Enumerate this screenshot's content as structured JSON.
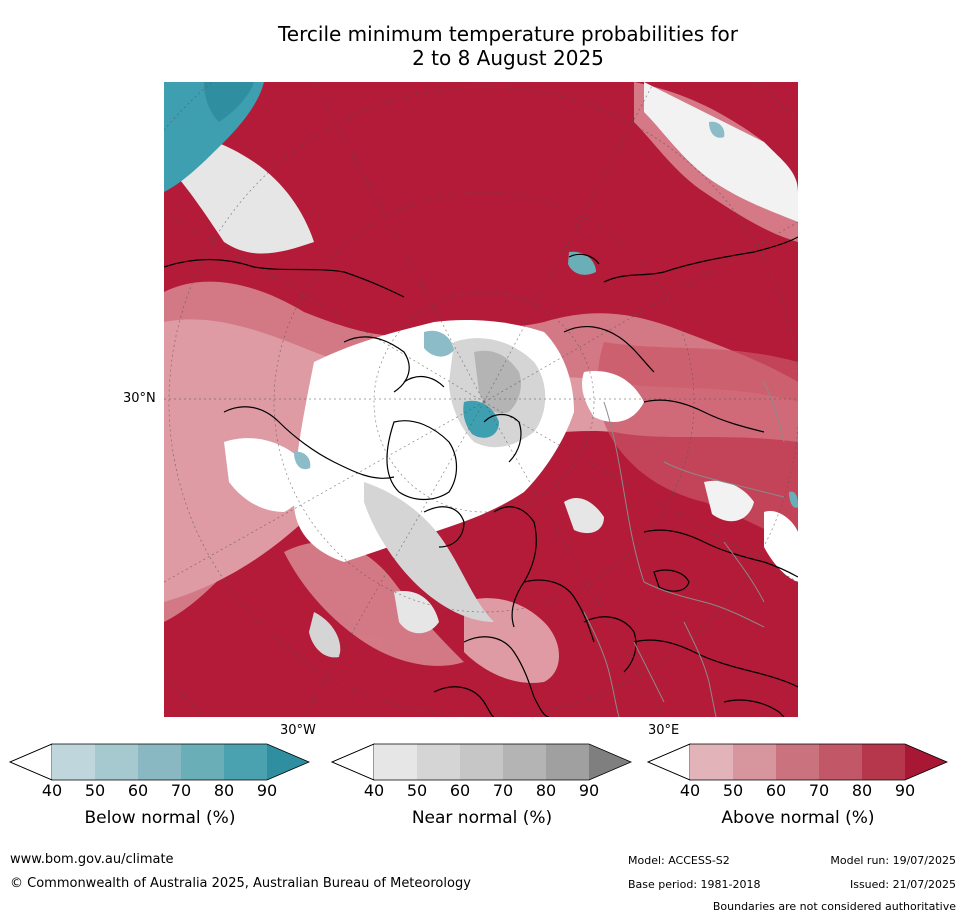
{
  "title": {
    "line1": "Tercile minimum temperature probabilities for",
    "line2": "2 to 8 August 2025"
  },
  "map": {
    "description_projection": "polar stereographic",
    "labels": {
      "lat30n": "30°N",
      "lon30w": "30°W",
      "lon30e": "30°E"
    },
    "colors": {
      "above90": "#b31b38",
      "above80": "#c4374f",
      "above70": "#cd5d6c",
      "above60": "#d7848e",
      "above50": "#e3a9b0",
      "above40": "#efd0d4",
      "near": "#c8c8c8",
      "near_dark": "#a8a8a8",
      "below": "#3e9fb0",
      "below_light": "#8cbcc7",
      "white": "#ffffff",
      "coast": "#000000",
      "border": "#8a8a8a"
    }
  },
  "colorbars": [
    {
      "name": "below",
      "label": "Below normal (%)",
      "ticks": [
        "40",
        "50",
        "60",
        "70",
        "80",
        "90"
      ],
      "colors": [
        "#ffffff",
        "#bfd7dc",
        "#a5c9cf",
        "#8ab8c2",
        "#6aaeb8",
        "#4aa2b0",
        "#2f8ea0"
      ]
    },
    {
      "name": "near",
      "label": "Near normal (%)",
      "ticks": [
        "40",
        "50",
        "60",
        "70",
        "80",
        "90"
      ],
      "colors": [
        "#ffffff",
        "#e6e6e6",
        "#d5d5d5",
        "#c6c6c6",
        "#b4b4b4",
        "#a0a0a0",
        "#7f7f7f"
      ]
    },
    {
      "name": "above",
      "label": "Above normal (%)",
      "ticks": [
        "40",
        "50",
        "60",
        "70",
        "80",
        "90"
      ],
      "colors": [
        "#ffffff",
        "#e2b3b9",
        "#d7959d",
        "#cb727f",
        "#c25767",
        "#b6374c",
        "#a81834"
      ]
    }
  ],
  "footer": {
    "website": "www.bom.gov.au/climate",
    "copyright": "© Commonwealth of Australia 2025, Australian Bureau of Meteorology",
    "model": "Model: ACCESS-S2",
    "base_period": "Base period: 1981-2018",
    "model_run": "Model run: 19/07/2025",
    "issued": "Issued: 21/07/2025",
    "disclaimer": "Boundaries are not considered authoritative"
  }
}
